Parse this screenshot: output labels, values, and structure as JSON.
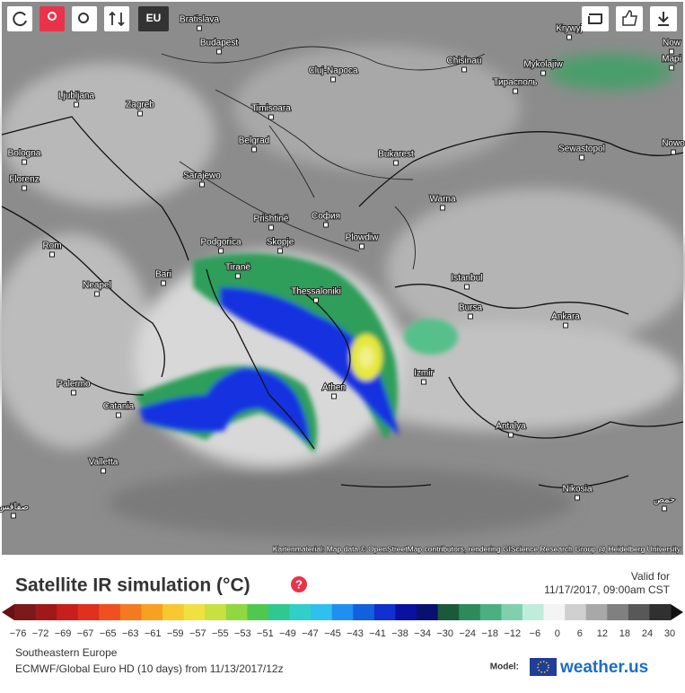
{
  "toolbar": {
    "region": "EU"
  },
  "map": {
    "cities": [
      "Bratislava",
      "Budapest",
      "Krywyj",
      "Now",
      "Mapi",
      "Chisinau",
      "Mykolajiw",
      "Cluj-Napoca",
      "Тирасполь",
      "Ljubljana",
      "Zagreb",
      "Timisoara",
      "Belgrad",
      "Sewastopol",
      "Nowo",
      "Bologna",
      "Bukarest",
      "Florenz",
      "Sarajewo",
      "Warna",
      "Prishtinë",
      "София",
      "Plowdiw",
      "Rom",
      "Podgorica",
      "Skopje",
      "Tiranë",
      "Bari",
      "Istanbul",
      "Neapel",
      "Thessaloniki",
      "Bursa",
      "Ankara",
      "Izmir",
      "Palermo",
      "Athen",
      "Catania",
      "Antalya",
      "Valletta",
      "Nikosia",
      "حمص",
      "صفاقس"
    ],
    "attribution": "Kartenmaterial: Map data © OpenStreetMap contributors, rendering GIScience Research Group @ Heidelberg University"
  },
  "header": {
    "title": "Satellite IR simulation (°C)",
    "help": "?",
    "valid_label": "Valid for",
    "valid_time": "11/17/2017, 09:00am CST"
  },
  "legend": {
    "ticks": [
      "−76",
      "−72",
      "−69",
      "−67",
      "−65",
      "−63",
      "−61",
      "−59",
      "−57",
      "−55",
      "−53",
      "−51",
      "−49",
      "−47",
      "−45",
      "−43",
      "−41",
      "−38",
      "−34",
      "−30",
      "−24",
      "−18",
      "−12",
      "−6",
      "0",
      "6",
      "12",
      "18",
      "24",
      "30"
    ]
  },
  "footer": {
    "region": "Southeastern Europe",
    "model_run": "ECMWF/Global Euro HD (10 days) from 11/13/2017/12z",
    "model_label": "Model:",
    "brand": "weather.us"
  }
}
